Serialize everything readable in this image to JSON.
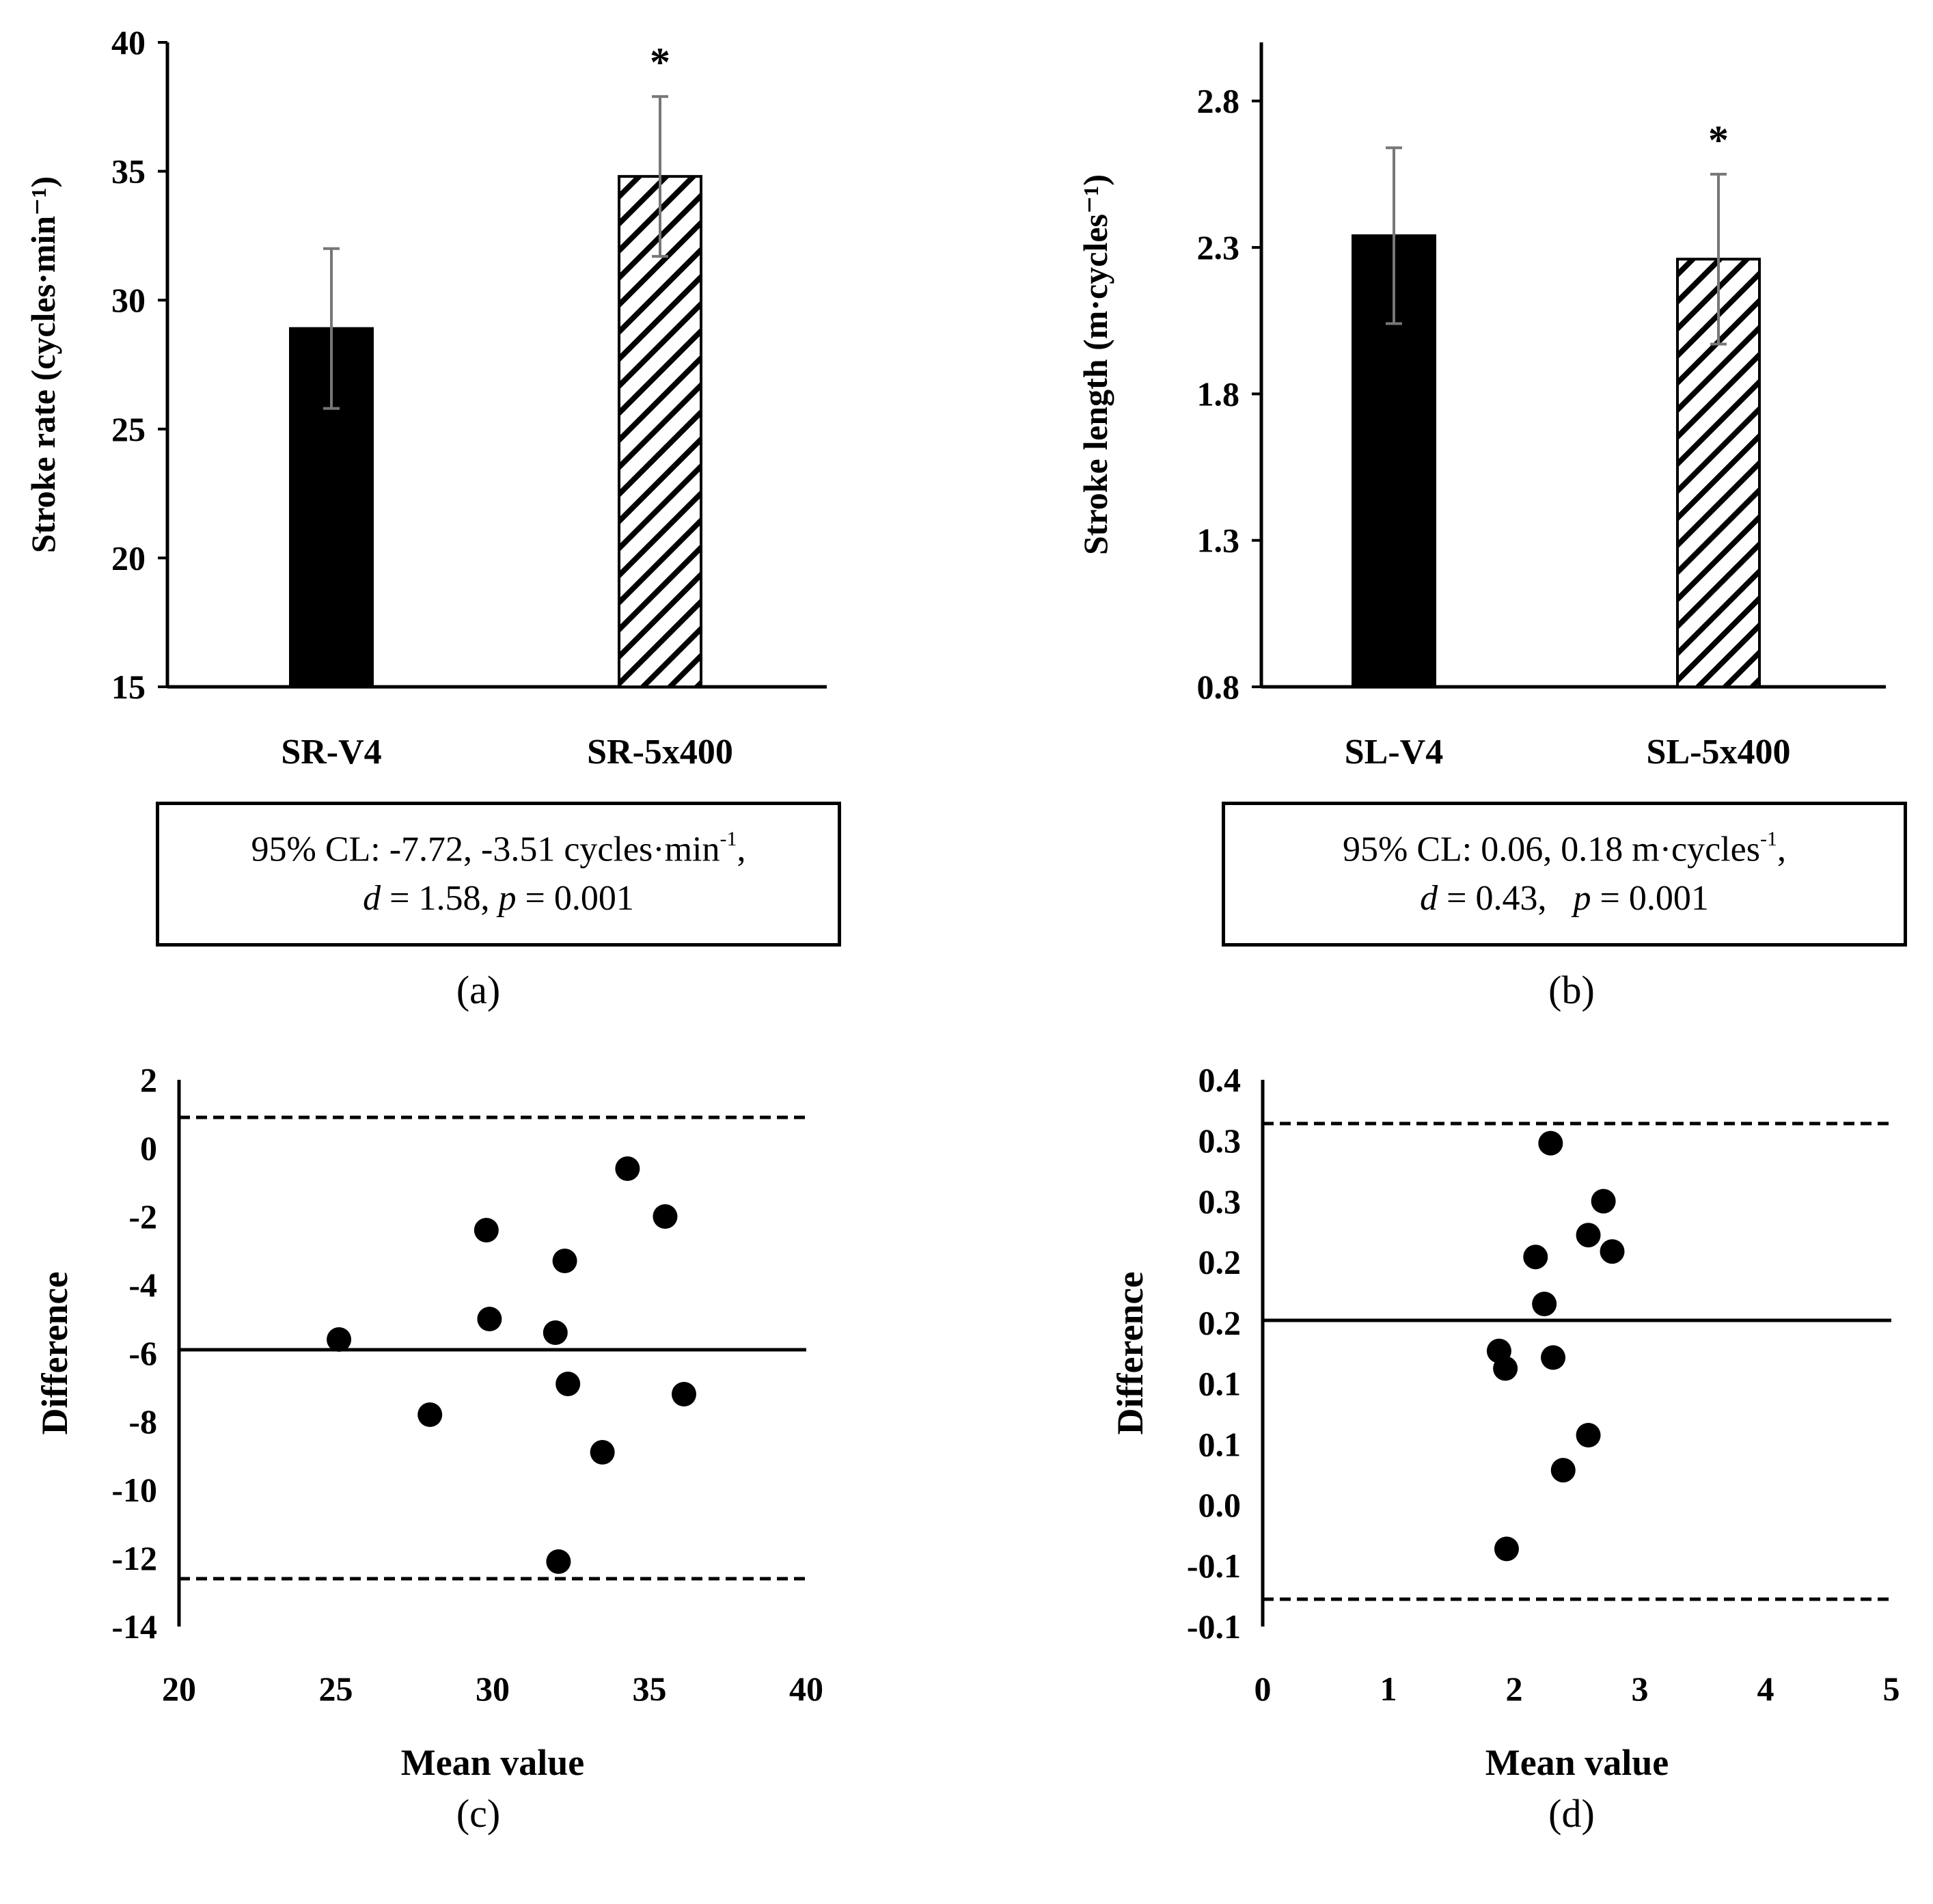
{
  "chart_data": [
    {
      "panel": "a",
      "type": "bar",
      "title": "",
      "ylabel": "Stroke rate (cycles·min⁻¹)",
      "xlabel": "",
      "ylim": [
        15,
        40
      ],
      "yticks": [
        "15",
        "20",
        "25",
        "30",
        "35",
        "40"
      ],
      "categories": [
        "SR-V4",
        "SR-5x400"
      ],
      "values": [
        28.9,
        34.8
      ],
      "error": [
        3.1,
        3.1
      ],
      "patterns": [
        "solid",
        "hatched"
      ],
      "significance": [
        "",
        "*"
      ],
      "stats_line1": "95% CL: -7.72, -3.51 cycles·min",
      "stats_line1_sup": "-1",
      "stats_line1_tail": ",",
      "stats_d_label": "d",
      "stats_d_value": " = 1.58, ",
      "stats_p_label": "p",
      "stats_p_value": " = 0.001",
      "panel_label": "(a)"
    },
    {
      "panel": "b",
      "type": "bar",
      "title": "",
      "ylabel": "Stroke length (m·cycles⁻¹)",
      "xlabel": "",
      "ylim": [
        0.8,
        3.0
      ],
      "yticks": [
        "0.8",
        "1.3",
        "1.8",
        "2.3",
        "2.8"
      ],
      "categories": [
        "SL-V4",
        "SL-5x400"
      ],
      "values": [
        2.34,
        2.26
      ],
      "error": [
        0.3,
        0.29
      ],
      "patterns": [
        "solid",
        "hatched"
      ],
      "significance": [
        "",
        "*"
      ],
      "stats_line1": "95% CL: 0.06, 0.18 m·cycles",
      "stats_line1_sup": "-1",
      "stats_line1_tail": ",",
      "stats_d_label": "d",
      "stats_d_value": " = 0.43,   ",
      "stats_p_label": "p",
      "stats_p_value": " = 0.001",
      "panel_label": "(b)"
    },
    {
      "panel": "c",
      "type": "scatter",
      "title": "",
      "xlabel": "Mean value",
      "ylabel": "Difference",
      "xlim": [
        20,
        40
      ],
      "ylim": [
        -14,
        2
      ],
      "xticks": [
        "20",
        "25",
        "30",
        "35",
        "40"
      ],
      "yticks": [
        "2",
        "0",
        "-2",
        "-4",
        "-6",
        "-8",
        "-10",
        "-12",
        "-14"
      ],
      "x": [
        25.1,
        28.0,
        29.8,
        29.9,
        32.0,
        32.1,
        32.3,
        32.4,
        33.5,
        34.3,
        35.5,
        36.1
      ],
      "y": [
        -5.6,
        -7.8,
        -2.4,
        -5.0,
        -5.4,
        -12.1,
        -3.3,
        -6.9,
        -8.9,
        -0.6,
        -2.0,
        -7.2
      ],
      "mean_line": -5.9,
      "upper_loa": 0.9,
      "lower_loa": -12.6,
      "panel_label": "(c)"
    },
    {
      "panel": "d",
      "type": "scatter",
      "title": "",
      "xlabel": "Mean value",
      "ylabel": "Difference",
      "xlim": [
        0,
        5
      ],
      "ylim": [
        -0.1,
        0.4
      ],
      "xticks": [
        "0",
        "1",
        "2",
        "3",
        "4",
        "5"
      ],
      "yticks": [
        "0.4",
        "0.3",
        "0.3",
        "0.2",
        "0.2",
        "0.1",
        "0.1",
        "0.0",
        "-0.1",
        "-0.1"
      ],
      "x": [
        2.29,
        2.71,
        2.59,
        2.78,
        2.17,
        2.24,
        1.88,
        1.93,
        2.31,
        2.59,
        2.39,
        1.94
      ],
      "y": [
        0.342,
        0.289,
        0.258,
        0.243,
        0.238,
        0.195,
        0.152,
        0.136,
        0.146,
        0.075,
        0.043,
        -0.029
      ],
      "mean_line": 0.18,
      "upper_loa": 0.36,
      "lower_loa": -0.075,
      "panel_label": "(d)"
    }
  ]
}
